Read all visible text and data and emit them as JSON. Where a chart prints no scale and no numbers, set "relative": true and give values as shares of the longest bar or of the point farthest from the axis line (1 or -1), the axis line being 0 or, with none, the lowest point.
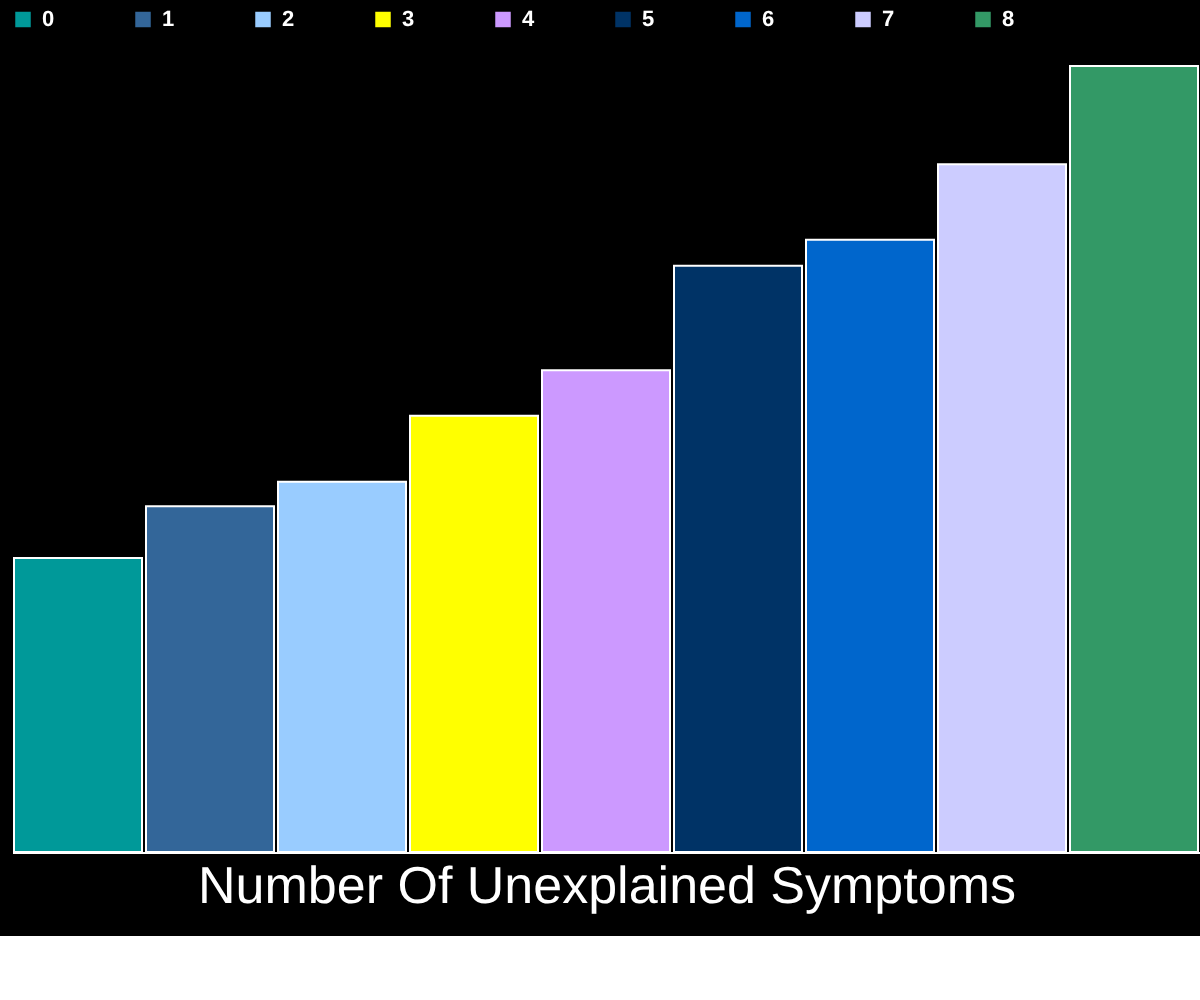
{
  "chart_data": {
    "type": "bar",
    "xlabel": "Number Of Unexplained Symptoms",
    "relative": true,
    "stacked": true,
    "categories": [
      null,
      null,
      null,
      null,
      null,
      null,
      null,
      null,
      null
    ],
    "series": [
      {
        "name": "0",
        "color": "#009999",
        "values": [
          0.374,
          null,
          null,
          null,
          null,
          null,
          null,
          null,
          null
        ]
      },
      {
        "name": "1",
        "color": "#336699",
        "values": [
          null,
          0.44,
          null,
          null,
          null,
          null,
          null,
          null,
          null
        ]
      },
      {
        "name": "2",
        "color": "#99ccff",
        "values": [
          null,
          null,
          0.471,
          null,
          null,
          null,
          null,
          null,
          null
        ]
      },
      {
        "name": "3",
        "color": "#ffff00",
        "values": [
          null,
          null,
          null,
          0.555,
          null,
          null,
          null,
          null,
          null
        ]
      },
      {
        "name": "4",
        "color": "#cc99ff",
        "values": [
          null,
          null,
          null,
          null,
          0.613,
          null,
          null,
          null,
          null
        ]
      },
      {
        "name": "5",
        "color": "#003366",
        "values": [
          null,
          null,
          null,
          null,
          null,
          0.746,
          null,
          null,
          null
        ]
      },
      {
        "name": "6",
        "color": "#0066cc",
        "values": [
          null,
          null,
          null,
          null,
          null,
          null,
          0.779,
          null,
          null
        ]
      },
      {
        "name": "7",
        "color": "#ccccff",
        "values": [
          null,
          null,
          null,
          null,
          null,
          null,
          null,
          0.875,
          null
        ]
      },
      {
        "name": "8",
        "color": "#339966",
        "values": [
          null,
          null,
          null,
          null,
          null,
          null,
          null,
          null,
          1.0
        ]
      }
    ],
    "legend": "top",
    "grid": false
  }
}
